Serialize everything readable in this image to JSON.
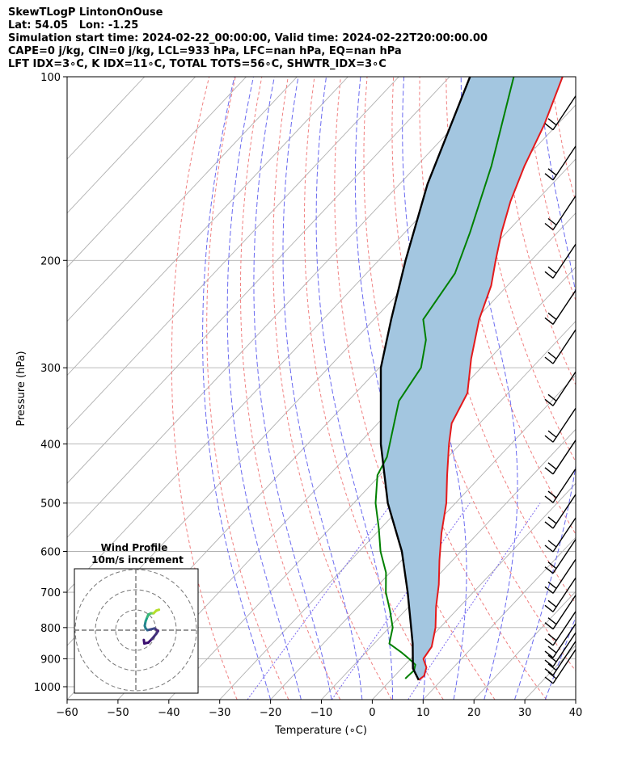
{
  "header": {
    "line1": "SkewTLogP LintonOnOuse",
    "line2": "Lat: 54.05   Lon: -1.25",
    "line3": "Simulation start time: 2024-02-22_00:00:00, Valid time: 2024-02-22T20:00:00.00",
    "line4": "CAPE=0 j/kg, CIN=0 j/kg, LCL=933 hPa, LFC=nan hPa, EQ=nan hPa",
    "line5": "LFT IDX=3∘C, K IDX=11∘C, TOTAL TOTS=56∘C, SHWTR_IDX=3∘C"
  },
  "colors": {
    "temperature": "#e41a1c",
    "dewpoint": "#008000",
    "parcel": "#000000",
    "cape_fill": "#a3c6e0",
    "dry_adiabat": "#f08080",
    "moist_adiabat": "#6a6af0",
    "mixing_ratio": "#7b68ee",
    "isotherm": "#b0b0b0",
    "isobar": "#b0b0b0"
  },
  "chart_data": {
    "type": "skew-t",
    "xlabel": "Temperature (∘C)",
    "ylabel": "Pressure (hPa)",
    "xlim": [
      -60,
      40
    ],
    "ylim": [
      1050,
      100
    ],
    "x_ticks": [
      "−60",
      "−50",
      "−40",
      "−30",
      "−20",
      "−10",
      "0",
      "10",
      "20",
      "30",
      "40"
    ],
    "y_ticks": [
      "100",
      "200",
      "300",
      "400",
      "500",
      "600",
      "700",
      "800",
      "900",
      "1000"
    ],
    "y_tick_values": [
      100,
      200,
      300,
      400,
      500,
      600,
      700,
      800,
      900,
      1000
    ],
    "grid": true,
    "series": [
      {
        "kind": "temperature",
        "pressure": [
          975,
          960,
          930,
          900,
          860,
          800,
          740,
          680,
          620,
          560,
          500,
          450,
          400,
          370,
          330,
          290,
          250,
          220,
          200,
          180,
          160,
          140,
          120,
          100
        ],
        "values": [
          5.5,
          5.8,
          4.7,
          2.5,
          1.9,
          -0.9,
          -4.6,
          -8.2,
          -12.6,
          -17.2,
          -21.8,
          -26.8,
          -32.2,
          -35.5,
          -38.0,
          -43.6,
          -49.3,
          -53.2,
          -57.0,
          -61.0,
          -65.0,
          -68.8,
          -72.5,
          -77.8
        ]
      },
      {
        "kind": "dewpoint",
        "pressure": [
          970,
          940,
          920,
          900,
          880,
          850,
          800,
          750,
          700,
          650,
          600,
          550,
          500,
          450,
          420,
          380,
          340,
          300,
          270,
          250,
          210,
          180,
          140,
          100
        ],
        "values": [
          2.6,
          2.8,
          2.0,
          -0.3,
          -2.8,
          -7.0,
          -9.3,
          -13.0,
          -17.2,
          -20.8,
          -25.8,
          -30.4,
          -35.7,
          -40.5,
          -42.0,
          -45.8,
          -50.0,
          -51.8,
          -56.0,
          -60.3,
          -62.6,
          -67.2,
          -75.3,
          -87.4
        ]
      },
      {
        "kind": "parcel",
        "pressure": [
          975,
          933,
          850,
          700,
          600,
          500,
          400,
          300,
          250,
          200,
          150,
          100
        ],
        "values": [
          5.5,
          2.2,
          -2.4,
          -12.9,
          -21.6,
          -33.3,
          -45.6,
          -59.7,
          -66.6,
          -74.7,
          -84.5,
          -96.0
        ]
      }
    ],
    "wind_barb_pressures": [
      120,
      145,
      175,
      210,
      250,
      290,
      340,
      390,
      440,
      490,
      540,
      590,
      640,
      690,
      740,
      790,
      840,
      880,
      910,
      940,
      970
    ],
    "inset": {
      "title": "Wind Profile",
      "subtitle": "10m/s increment",
      "rings": [
        10,
        20,
        30
      ]
    }
  }
}
